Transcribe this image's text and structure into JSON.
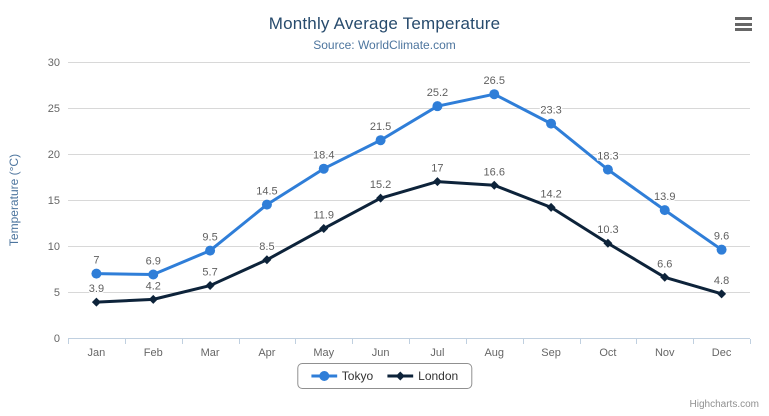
{
  "header": {
    "title": "Monthly Average Temperature",
    "subtitle": "Source: WorldClimate.com"
  },
  "menu_icon": "hamburger-menu",
  "credits_label": "Highcharts.com",
  "chart_data": {
    "type": "line",
    "title": "Monthly Average Temperature",
    "subtitle": "Source: WorldClimate.com",
    "categories": [
      "Jan",
      "Feb",
      "Mar",
      "Apr",
      "May",
      "Jun",
      "Jul",
      "Aug",
      "Sep",
      "Oct",
      "Nov",
      "Dec"
    ],
    "series": [
      {
        "name": "Tokyo",
        "color": "#2f7ed8",
        "marker": "circle",
        "values": [
          7,
          6.9,
          9.5,
          14.5,
          18.4,
          21.5,
          25.2,
          26.5,
          23.3,
          18.3,
          13.9,
          9.6
        ]
      },
      {
        "name": "London",
        "color": "#0d233a",
        "marker": "diamond",
        "values": [
          3.9,
          4.2,
          5.7,
          8.5,
          11.9,
          15.2,
          17,
          16.6,
          14.2,
          10.3,
          6.6,
          4.8
        ]
      }
    ],
    "xlabel": "",
    "ylabel": "Temperature (°C)",
    "ylim": [
      0,
      30
    ],
    "yticks": [
      0,
      5,
      10,
      15,
      20,
      25,
      30
    ],
    "grid": true,
    "data_labels": true,
    "legend_position": "bottom",
    "colors": {
      "grid_line": "#d8d8d8",
      "axis_line": "#c0d0e0",
      "tick": "#c0d0e0",
      "axis_text": "#666666",
      "data_label_text": "#606060",
      "title_text": "#274b6d",
      "subtitle_text": "#4d759e",
      "legend_border": "#909090",
      "legend_text": "#333333",
      "credits_text": "#909090"
    }
  }
}
